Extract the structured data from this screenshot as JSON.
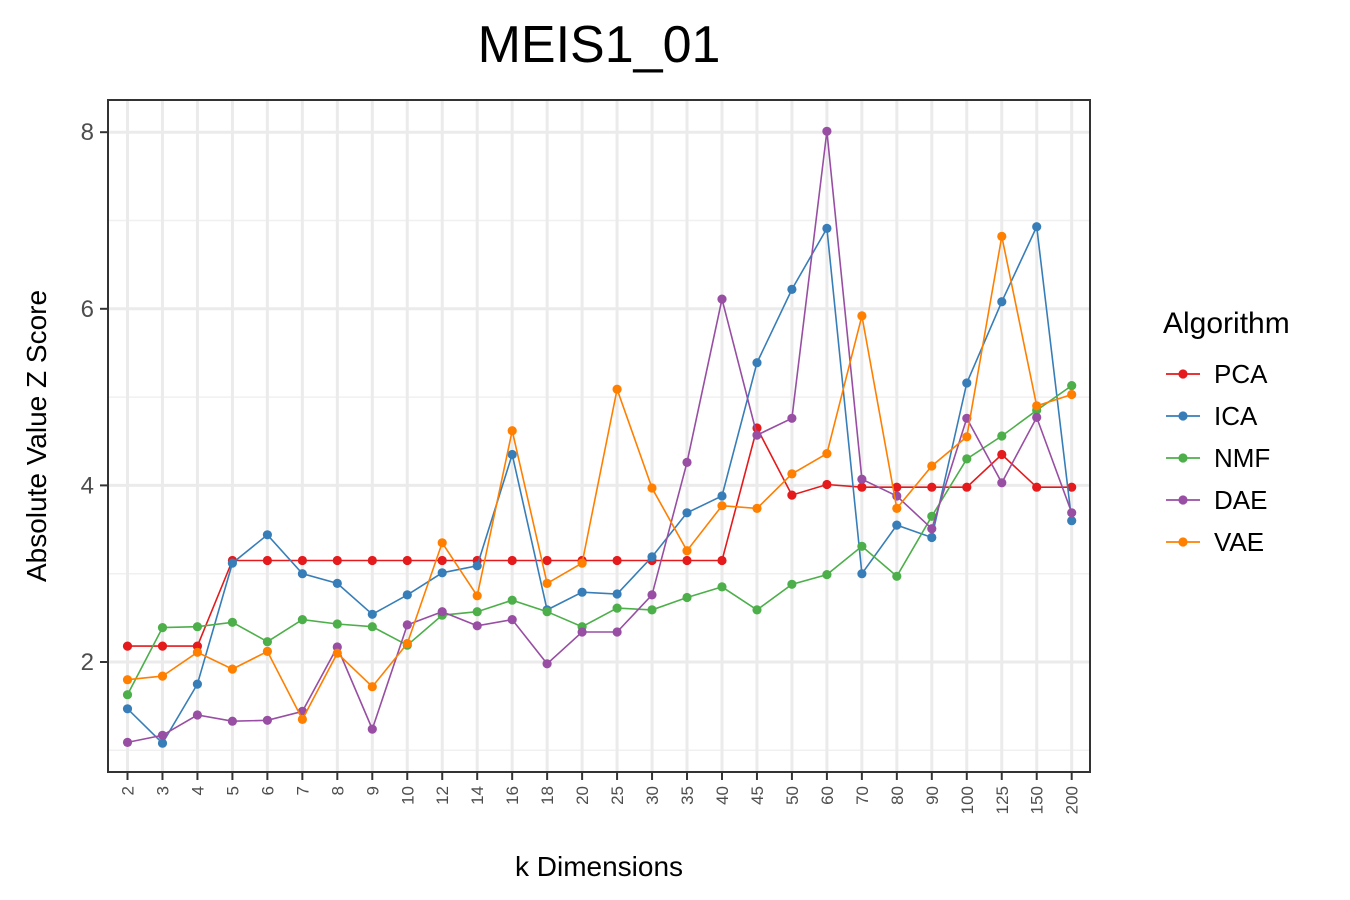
{
  "chart_data": {
    "type": "line",
    "title": "MEIS1_01",
    "xlabel": "k Dimensions",
    "ylabel": "Absolute Value Z Score",
    "categories": [
      "2",
      "3",
      "4",
      "5",
      "6",
      "7",
      "8",
      "9",
      "10",
      "12",
      "14",
      "16",
      "18",
      "20",
      "25",
      "30",
      "35",
      "40",
      "45",
      "50",
      "60",
      "70",
      "80",
      "90",
      "100",
      "125",
      "150",
      "200"
    ],
    "ylim": [
      0.75,
      8.35
    ],
    "yticks": [
      2,
      4,
      6,
      8
    ],
    "grid": true,
    "legend": {
      "title": "Algorithm",
      "placement": "right"
    },
    "series": [
      {
        "name": "PCA",
        "color": "#e41a1c",
        "values": [
          2.18,
          2.18,
          2.18,
          3.15,
          3.15,
          3.15,
          3.15,
          3.15,
          3.15,
          3.15,
          3.15,
          3.15,
          3.15,
          3.15,
          3.15,
          3.15,
          3.15,
          3.15,
          4.65,
          3.89,
          4.01,
          3.98,
          3.98,
          3.98,
          3.98,
          4.35,
          3.98,
          3.98
        ]
      },
      {
        "name": "ICA",
        "color": "#377eb8",
        "values": [
          1.47,
          1.08,
          1.75,
          3.12,
          3.44,
          3.0,
          2.89,
          2.54,
          2.76,
          3.01,
          3.09,
          4.35,
          2.59,
          2.79,
          2.77,
          3.19,
          3.69,
          3.88,
          5.39,
          6.22,
          6.91,
          3.0,
          3.55,
          3.41,
          5.16,
          6.08,
          6.93,
          3.6
        ]
      },
      {
        "name": "NMF",
        "color": "#4daf4a",
        "values": [
          1.63,
          2.39,
          2.4,
          2.45,
          2.23,
          2.48,
          2.43,
          2.4,
          2.19,
          2.53,
          2.57,
          2.7,
          2.57,
          2.4,
          2.61,
          2.59,
          2.73,
          2.85,
          2.59,
          2.88,
          2.99,
          3.31,
          2.97,
          3.65,
          4.3,
          4.56,
          4.85,
          5.13
        ]
      },
      {
        "name": "DAE",
        "color": "#984ea3",
        "values": [
          1.09,
          1.17,
          1.4,
          1.33,
          1.34,
          1.44,
          2.17,
          1.24,
          2.42,
          2.57,
          2.41,
          2.48,
          1.98,
          2.34,
          2.34,
          2.76,
          4.26,
          6.11,
          4.57,
          4.76,
          8.01,
          4.07,
          3.88,
          3.51,
          4.76,
          4.03,
          4.77,
          3.69
        ]
      },
      {
        "name": "VAE",
        "color": "#ff7f00",
        "values": [
          1.8,
          1.84,
          2.11,
          1.92,
          2.12,
          1.35,
          2.1,
          1.72,
          2.21,
          3.35,
          2.75,
          4.62,
          2.89,
          3.12,
          5.09,
          3.97,
          3.26,
          3.77,
          3.74,
          4.13,
          4.36,
          5.92,
          3.74,
          4.22,
          4.55,
          6.82,
          4.9,
          5.03
        ]
      }
    ]
  }
}
